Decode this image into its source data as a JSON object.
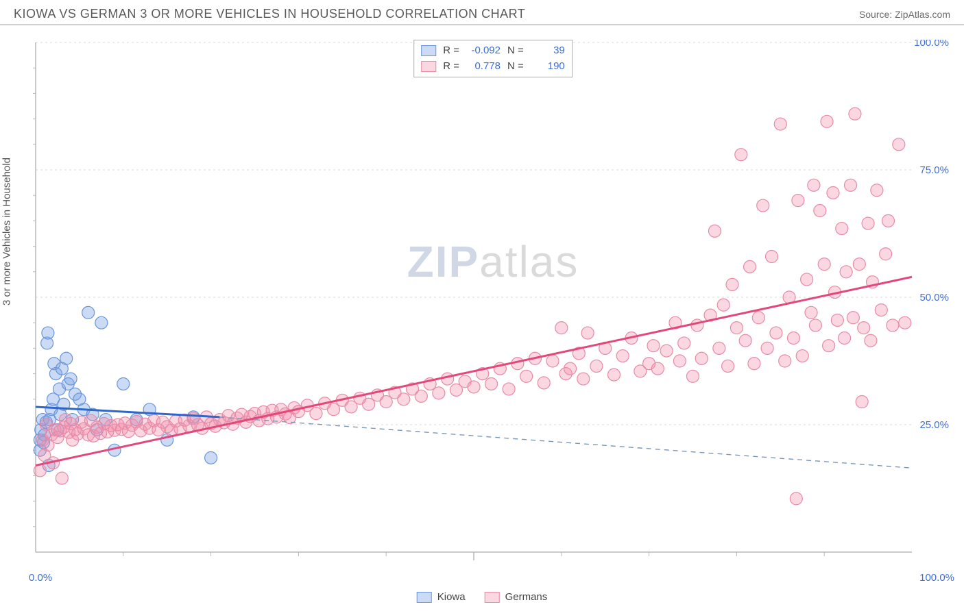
{
  "header": {
    "title": "KIOWA VS GERMAN 3 OR MORE VEHICLES IN HOUSEHOLD CORRELATION CHART",
    "source_prefix": "Source: ",
    "source": "ZipAtlas.com"
  },
  "ylabel": "3 or more Vehicles in Household",
  "watermark": {
    "bold": "ZIP",
    "rest": "atlas"
  },
  "chart": {
    "type": "scatter",
    "xlim": [
      0,
      100
    ],
    "ylim": [
      0,
      100
    ],
    "y_ticks": [
      25,
      50,
      75,
      100
    ],
    "y_tick_labels": [
      "25.0%",
      "50.0%",
      "75.0%",
      "100.0%"
    ],
    "x_corner_labels": [
      "0.0%",
      "100.0%"
    ],
    "x_minor_pct": [
      10,
      20,
      30,
      40,
      50,
      60,
      70,
      80,
      90
    ],
    "y_minor_pct": [
      5,
      10,
      15,
      20,
      30,
      35,
      40,
      45,
      55,
      60,
      65,
      70,
      80,
      85,
      90,
      95
    ],
    "background_color": "#ffffff",
    "grid_color": "#d8d8d8",
    "axis_color": "#b8b8b8",
    "axis_label_color": "#3b6fd6",
    "series": [
      {
        "name": "Kiowa",
        "fill": "rgba(120,160,230,0.38)",
        "stroke": "#6a95d8",
        "line_color": "#2f66c9",
        "dash_color": "#7a96b8",
        "R": "-0.092",
        "N": "39",
        "marker_r": 9,
        "trend": {
          "x1": 0,
          "y1": 28.5,
          "x2": 21,
          "y2": 26.5
        },
        "trend_dash": {
          "x1": 21,
          "y1": 26.5,
          "x2": 100,
          "y2": 16.5
        },
        "points": [
          [
            0.5,
            20
          ],
          [
            0.5,
            22
          ],
          [
            0.6,
            24
          ],
          [
            0.8,
            26
          ],
          [
            0.9,
            21.5
          ],
          [
            1.0,
            23
          ],
          [
            1.2,
            25.5
          ],
          [
            1.3,
            41
          ],
          [
            1.4,
            43
          ],
          [
            1.5,
            17
          ],
          [
            1.6,
            26
          ],
          [
            1.8,
            28
          ],
          [
            2.0,
            30
          ],
          [
            2.1,
            37
          ],
          [
            2.3,
            35
          ],
          [
            2.5,
            24
          ],
          [
            2.7,
            32
          ],
          [
            2.8,
            27
          ],
          [
            3.0,
            36
          ],
          [
            3.2,
            29
          ],
          [
            3.5,
            38
          ],
          [
            3.7,
            33
          ],
          [
            4.0,
            34
          ],
          [
            4.2,
            26
          ],
          [
            4.5,
            31
          ],
          [
            5.0,
            30
          ],
          [
            5.5,
            28
          ],
          [
            6.0,
            47
          ],
          [
            6.5,
            27
          ],
          [
            7.0,
            24
          ],
          [
            7.5,
            45
          ],
          [
            8.0,
            26
          ],
          [
            9.0,
            20
          ],
          [
            10.0,
            33
          ],
          [
            11.5,
            26
          ],
          [
            13.0,
            28
          ],
          [
            15.0,
            22
          ],
          [
            18.0,
            26.5
          ],
          [
            20.0,
            18.5
          ]
        ]
      },
      {
        "name": "Germans",
        "fill": "rgba(240,140,170,0.35)",
        "stroke": "#e78aa8",
        "line_color": "#e2487a",
        "R": "0.778",
        "N": "190",
        "marker_r": 9,
        "trend": {
          "x1": 0,
          "y1": 17,
          "x2": 100,
          "y2": 54
        },
        "points": [
          [
            0.5,
            16
          ],
          [
            0.8,
            22
          ],
          [
            1.0,
            19
          ],
          [
            1.2,
            25
          ],
          [
            1.4,
            21
          ],
          [
            1.8,
            23
          ],
          [
            2.0,
            17.5
          ],
          [
            2.2,
            24
          ],
          [
            2.5,
            22.5
          ],
          [
            2.8,
            23.8
          ],
          [
            3.0,
            14.5
          ],
          [
            3.2,
            24.5
          ],
          [
            3.4,
            26
          ],
          [
            3.8,
            23.5
          ],
          [
            4.0,
            25.2
          ],
          [
            4.2,
            22
          ],
          [
            4.5,
            24
          ],
          [
            4.8,
            23.2
          ],
          [
            5.2,
            25.5
          ],
          [
            5.5,
            24.2
          ],
          [
            6.0,
            23
          ],
          [
            6.3,
            25.8
          ],
          [
            6.6,
            22.8
          ],
          [
            7.0,
            24.5
          ],
          [
            7.4,
            23.3
          ],
          [
            7.8,
            25.2
          ],
          [
            8.2,
            23.6
          ],
          [
            8.6,
            24.8
          ],
          [
            9.0,
            23.9
          ],
          [
            9.4,
            25
          ],
          [
            9.8,
            24.1
          ],
          [
            10.2,
            25.3
          ],
          [
            10.6,
            23.7
          ],
          [
            11.0,
            24.9
          ],
          [
            11.5,
            25.6
          ],
          [
            12.0,
            23.8
          ],
          [
            12.5,
            25.1
          ],
          [
            13.0,
            24.3
          ],
          [
            13.5,
            25.8
          ],
          [
            14.0,
            24
          ],
          [
            14.5,
            25.5
          ],
          [
            15.0,
            24.6
          ],
          [
            15.5,
            23.9
          ],
          [
            16.0,
            25.7
          ],
          [
            16.5,
            24.2
          ],
          [
            17.0,
            25.9
          ],
          [
            17.5,
            24.8
          ],
          [
            18.0,
            26.2
          ],
          [
            18.5,
            25
          ],
          [
            19.0,
            24.3
          ],
          [
            19.5,
            26.5
          ],
          [
            20.0,
            25.2
          ],
          [
            20.5,
            24.7
          ],
          [
            21.0,
            26
          ],
          [
            21.5,
            25.4
          ],
          [
            22.0,
            26.8
          ],
          [
            22.5,
            25.1
          ],
          [
            23.0,
            26.3
          ],
          [
            23.5,
            27
          ],
          [
            24.0,
            25.5
          ],
          [
            24.5,
            26.6
          ],
          [
            25.0,
            27.2
          ],
          [
            25.5,
            25.8
          ],
          [
            26.0,
            27.5
          ],
          [
            26.5,
            26.2
          ],
          [
            27.0,
            27.8
          ],
          [
            27.5,
            26.5
          ],
          [
            28.0,
            28
          ],
          [
            28.5,
            27.1
          ],
          [
            29.0,
            26.4
          ],
          [
            29.5,
            28.3
          ],
          [
            30.0,
            27.6
          ],
          [
            31.0,
            28.8
          ],
          [
            32.0,
            27.2
          ],
          [
            33.0,
            29.2
          ],
          [
            34.0,
            28
          ],
          [
            35.0,
            29.8
          ],
          [
            36.0,
            28.5
          ],
          [
            37.0,
            30.2
          ],
          [
            38.0,
            29
          ],
          [
            39.0,
            30.8
          ],
          [
            40.0,
            29.5
          ],
          [
            41.0,
            31.3
          ],
          [
            42.0,
            30
          ],
          [
            43.0,
            32
          ],
          [
            44.0,
            30.6
          ],
          [
            45.0,
            33
          ],
          [
            46.0,
            31.2
          ],
          [
            47.0,
            34
          ],
          [
            48.0,
            31.8
          ],
          [
            49.0,
            33.5
          ],
          [
            50.0,
            32.4
          ],
          [
            51.0,
            35
          ],
          [
            52.0,
            33
          ],
          [
            53.0,
            36
          ],
          [
            54.0,
            32
          ],
          [
            55.0,
            37
          ],
          [
            56.0,
            34.5
          ],
          [
            57.0,
            38
          ],
          [
            58.0,
            33.2
          ],
          [
            59.0,
            37.5
          ],
          [
            60.0,
            44
          ],
          [
            60.5,
            35
          ],
          [
            61.0,
            36
          ],
          [
            62.0,
            39
          ],
          [
            62.5,
            34
          ],
          [
            63.0,
            43
          ],
          [
            64.0,
            36.5
          ],
          [
            65.0,
            40
          ],
          [
            66.0,
            34.8
          ],
          [
            67.0,
            38.5
          ],
          [
            68.0,
            42
          ],
          [
            69.0,
            35.5
          ],
          [
            70.0,
            37
          ],
          [
            70.5,
            40.5
          ],
          [
            71.0,
            36
          ],
          [
            72.0,
            39.5
          ],
          [
            73.0,
            45
          ],
          [
            73.5,
            37.5
          ],
          [
            74.0,
            41
          ],
          [
            75.0,
            34.5
          ],
          [
            75.5,
            44.5
          ],
          [
            76.0,
            38
          ],
          [
            77.0,
            46.5
          ],
          [
            77.5,
            63
          ],
          [
            78.0,
            40
          ],
          [
            78.5,
            48.5
          ],
          [
            79.0,
            36.5
          ],
          [
            79.5,
            52.5
          ],
          [
            80.0,
            44
          ],
          [
            80.5,
            78
          ],
          [
            81.0,
            41.5
          ],
          [
            81.5,
            56
          ],
          [
            82.0,
            37
          ],
          [
            82.5,
            46
          ],
          [
            83.0,
            68
          ],
          [
            83.5,
            40
          ],
          [
            84.0,
            58
          ],
          [
            84.5,
            43
          ],
          [
            85.0,
            84
          ],
          [
            85.5,
            37.5
          ],
          [
            86.0,
            50
          ],
          [
            86.5,
            42
          ],
          [
            86.8,
            10.5
          ],
          [
            87.0,
            69
          ],
          [
            87.5,
            38.5
          ],
          [
            88.0,
            53.5
          ],
          [
            88.5,
            47
          ],
          [
            88.8,
            72
          ],
          [
            89.0,
            44.5
          ],
          [
            89.5,
            67
          ],
          [
            90.0,
            56.5
          ],
          [
            90.3,
            84.5
          ],
          [
            90.5,
            40.5
          ],
          [
            91.0,
            70.5
          ],
          [
            91.2,
            51
          ],
          [
            91.5,
            45.5
          ],
          [
            92.0,
            63.5
          ],
          [
            92.3,
            42
          ],
          [
            92.5,
            55
          ],
          [
            93.0,
            72
          ],
          [
            93.3,
            46
          ],
          [
            93.5,
            86
          ],
          [
            94.0,
            56.5
          ],
          [
            94.3,
            29.5
          ],
          [
            94.5,
            44
          ],
          [
            95.0,
            64.5
          ],
          [
            95.3,
            41.5
          ],
          [
            95.5,
            53
          ],
          [
            96.0,
            71
          ],
          [
            96.5,
            47.5
          ],
          [
            97.0,
            58.5
          ],
          [
            97.3,
            65
          ],
          [
            97.8,
            44.5
          ],
          [
            98.5,
            80
          ],
          [
            99.2,
            45
          ]
        ]
      }
    ]
  },
  "legend_bottom": [
    {
      "label": "Kiowa",
      "series": 0
    },
    {
      "label": "Germans",
      "series": 1
    }
  ]
}
